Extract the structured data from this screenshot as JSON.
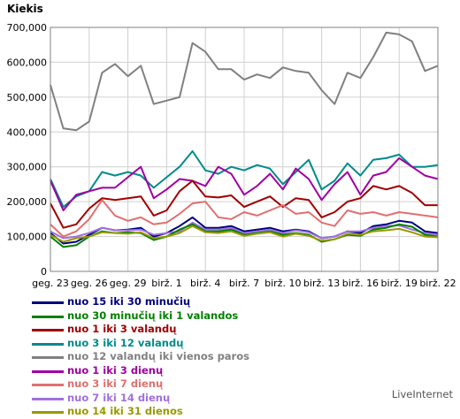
{
  "chart_data": {
    "type": "line",
    "ylabel": "Kiekis",
    "ylim": [
      0,
      700000
    ],
    "yticks": [
      "0",
      "100,000",
      "200,000",
      "300,000",
      "400,000",
      "500,000",
      "600,000",
      "700,000"
    ],
    "xtick_labels": [
      "geg. 23",
      "geg. 26",
      "geg. 29",
      "birž. 1",
      "birž. 4",
      "birž. 7",
      "birž. 10",
      "birž. 13",
      "birž. 16",
      "birž. 19",
      "birž. 22"
    ],
    "grid": true,
    "legend_position": "bottom-left",
    "series": [
      {
        "name": "nuo 15 iki 30 minučių",
        "color": "#000080",
        "values": [
          110000,
          80000,
          85000,
          105000,
          125000,
          118000,
          120000,
          125000,
          100000,
          110000,
          130000,
          155000,
          125000,
          125000,
          130000,
          115000,
          120000,
          125000,
          115000,
          120000,
          115000,
          95000,
          100000,
          115000,
          110000,
          130000,
          135000,
          145000,
          140000,
          115000,
          110000
        ]
      },
      {
        "name": "nuo 30 minučių iki 1 valandos",
        "color": "#008000",
        "values": [
          100000,
          70000,
          75000,
          100000,
          115000,
          110000,
          112000,
          110000,
          90000,
          100000,
          120000,
          135000,
          115000,
          115000,
          120000,
          105000,
          110000,
          115000,
          105000,
          110000,
          105000,
          85000,
          92000,
          105000,
          102000,
          120000,
          125000,
          135000,
          128000,
          105000,
          100000
        ]
      },
      {
        "name": "nuo 1 iki 3 valandų",
        "color": "#a00000",
        "values": [
          195000,
          125000,
          135000,
          180000,
          210000,
          205000,
          210000,
          215000,
          160000,
          175000,
          230000,
          260000,
          215000,
          212000,
          218000,
          185000,
          200000,
          215000,
          185000,
          210000,
          205000,
          155000,
          170000,
          200000,
          210000,
          245000,
          235000,
          245000,
          225000,
          190000,
          190000
        ]
      },
      {
        "name": "nuo 3 iki 12 valandų",
        "color": "#008b8b",
        "values": [
          265000,
          185000,
          215000,
          230000,
          285000,
          275000,
          285000,
          275000,
          240000,
          270000,
          300000,
          345000,
          290000,
          280000,
          300000,
          290000,
          305000,
          295000,
          250000,
          285000,
          320000,
          235000,
          260000,
          310000,
          275000,
          320000,
          325000,
          335000,
          300000,
          300000,
          305000
        ]
      },
      {
        "name": "nuo 12 valandų iki vienos paros",
        "color": "#808080",
        "values": [
          535000,
          410000,
          405000,
          430000,
          570000,
          595000,
          560000,
          590000,
          480000,
          490000,
          500000,
          655000,
          630000,
          580000,
          580000,
          550000,
          565000,
          555000,
          585000,
          575000,
          570000,
          520000,
          480000,
          570000,
          555000,
          615000,
          685000,
          680000,
          660000,
          575000,
          590000
        ]
      },
      {
        "name": "nuo 1 iki 3 dienų",
        "color": "#a000a0",
        "values": [
          260000,
          175000,
          220000,
          230000,
          240000,
          240000,
          270000,
          300000,
          210000,
          235000,
          265000,
          260000,
          245000,
          300000,
          280000,
          220000,
          245000,
          280000,
          235000,
          295000,
          265000,
          205000,
          250000,
          285000,
          220000,
          275000,
          285000,
          325000,
          300000,
          275000,
          265000
        ]
      },
      {
        "name": "nuo 3 iki 7 dienų",
        "color": "#e07070",
        "values": [
          135000,
          100000,
          115000,
          150000,
          205000,
          160000,
          145000,
          155000,
          135000,
          140000,
          165000,
          195000,
          200000,
          155000,
          150000,
          170000,
          160000,
          175000,
          190000,
          165000,
          170000,
          140000,
          130000,
          175000,
          165000,
          170000,
          160000,
          170000,
          165000,
          160000,
          155000
        ]
      },
      {
        "name": "nuo 7 iki 14 dienų",
        "color": "#a070e0",
        "values": [
          115000,
          95000,
          100000,
          110000,
          125000,
          118000,
          118000,
          120000,
          105000,
          110000,
          115000,
          140000,
          120000,
          120000,
          125000,
          110000,
          115000,
          120000,
          110000,
          118000,
          112000,
          95000,
          100000,
          115000,
          115000,
          125000,
          130000,
          132000,
          120000,
          110000,
          105000
        ]
      },
      {
        "name": "nuo 14 iki 31 dienos",
        "color": "#999900",
        "values": [
          105000,
          85000,
          95000,
          100000,
          112000,
          110000,
          108000,
          112000,
          95000,
          100000,
          110000,
          130000,
          112000,
          110000,
          115000,
          102000,
          108000,
          112000,
          100000,
          108000,
          102000,
          88000,
          92000,
          108000,
          105000,
          115000,
          118000,
          122000,
          112000,
          100000,
          98000
        ]
      }
    ]
  },
  "credit": "LiveInternet"
}
